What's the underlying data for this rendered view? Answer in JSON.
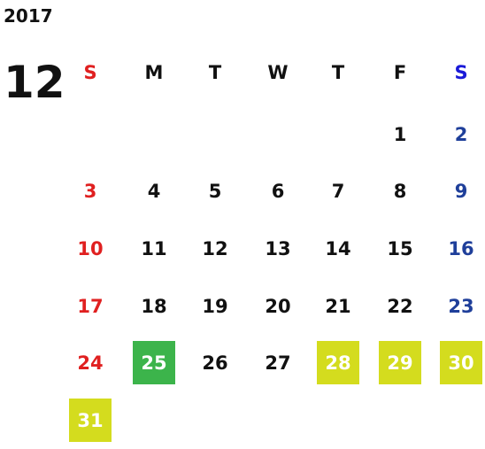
{
  "year": "2017",
  "month": "12",
  "weekdays": [
    "S",
    "M",
    "T",
    "W",
    "T",
    "F",
    "S"
  ],
  "weekday_colors": [
    "#e02020",
    "#111111",
    "#111111",
    "#111111",
    "#111111",
    "#111111",
    "#1a1ad8"
  ],
  "day_colors": [
    "#e02020",
    "#111111",
    "#111111",
    "#111111",
    "#111111",
    "#111111",
    "#1f3f9a"
  ],
  "weeks": [
    [
      null,
      null,
      null,
      null,
      null,
      "1",
      "2"
    ],
    [
      "3",
      "4",
      "5",
      "6",
      "7",
      "8",
      "9"
    ],
    [
      "10",
      "11",
      "12",
      "13",
      "14",
      "15",
      "16"
    ],
    [
      "17",
      "18",
      "19",
      "20",
      "21",
      "22",
      "23"
    ],
    [
      "24",
      {
        "day": "25",
        "bg": "#3cb44b"
      },
      "26",
      "27",
      {
        "day": "28",
        "bg": "#d4dc1e"
      },
      {
        "day": "29",
        "bg": "#d4dc1e"
      },
      {
        "day": "30",
        "bg": "#d4dc1e"
      }
    ],
    [
      {
        "day": "31",
        "bg": "#d4dc1e"
      },
      null,
      null,
      null,
      null,
      null,
      null
    ]
  ]
}
